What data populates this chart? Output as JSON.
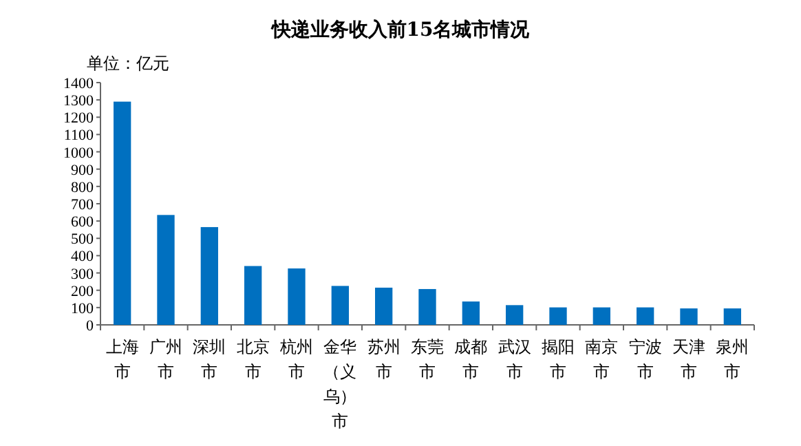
{
  "chart_data": {
    "type": "bar",
    "title": "快递业务收入前15名城市情况",
    "ylabel": "单位：亿元",
    "categories": [
      "上海市",
      "广州市",
      "深圳市",
      "北京市",
      "杭州市",
      "金华（义乌）市",
      "苏州市",
      "东莞市",
      "成都市",
      "武汉市",
      "揭阳市",
      "南京市",
      "宁波市",
      "天津市",
      "泉州市"
    ],
    "values": [
      1290,
      635,
      565,
      340,
      326,
      225,
      215,
      207,
      135,
      114,
      101,
      101,
      101,
      95,
      95
    ],
    "color": "#0070c0",
    "ylim": [
      0,
      1400
    ],
    "yticks": [
      0,
      100,
      200,
      300,
      400,
      500,
      600,
      700,
      800,
      900,
      1000,
      1100,
      1200,
      1300,
      1400
    ]
  }
}
